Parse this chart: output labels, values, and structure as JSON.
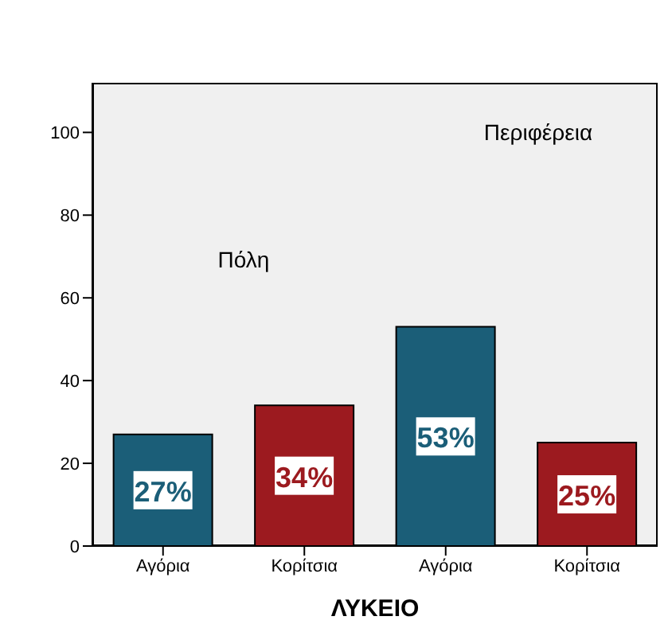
{
  "chart_data": {
    "type": "bar",
    "xlabel": "ΛΥΚΕΙΟ",
    "categories": [
      "Αγόρια",
      "Κορίτσια",
      "Αγόρια",
      "Κορίτσια"
    ],
    "values": [
      27,
      34,
      53,
      25
    ],
    "colors": [
      "#1b5e78",
      "#9c1a1f",
      "#1b5e78",
      "#9c1a1f"
    ],
    "value_labels": [
      "27%",
      "34%",
      "53%",
      "25%"
    ],
    "ylim": [
      0,
      112
    ],
    "yticks": [
      0,
      20,
      40,
      60,
      80,
      100
    ],
    "annotations": [
      "Πόλη",
      "Περιφέρεια"
    ]
  }
}
